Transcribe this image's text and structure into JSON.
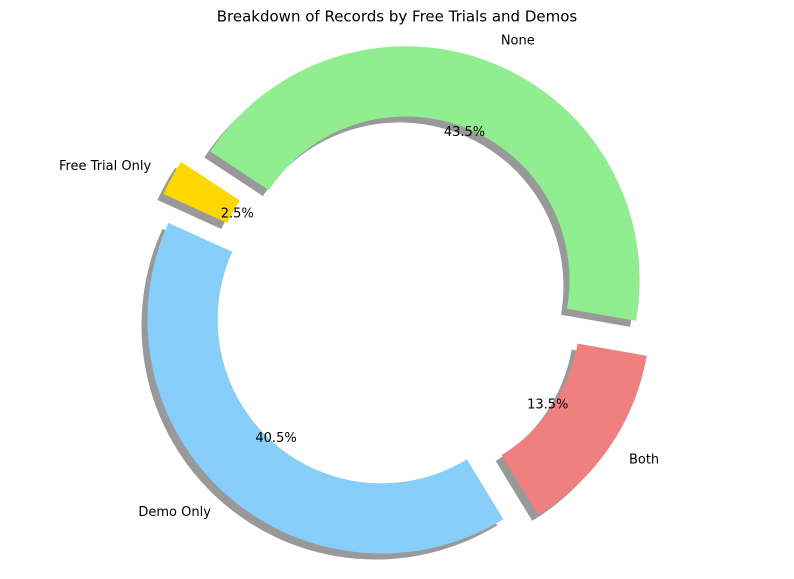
{
  "chart_data": {
    "type": "pie",
    "title": "Breakdown of Records by Free Trials and Demos",
    "categories": [
      "None",
      "Free Trial Only",
      "Demo Only",
      "Both"
    ],
    "values": [
      43.5,
      2.5,
      40.5,
      13.5
    ],
    "value_labels": [
      "43.5%",
      "2.5%",
      "40.5%",
      "13.5%"
    ],
    "colors": [
      "#90ee90",
      "#ffd700",
      "#87cefa",
      "#f08080"
    ],
    "donut": true,
    "shadow": true
  }
}
